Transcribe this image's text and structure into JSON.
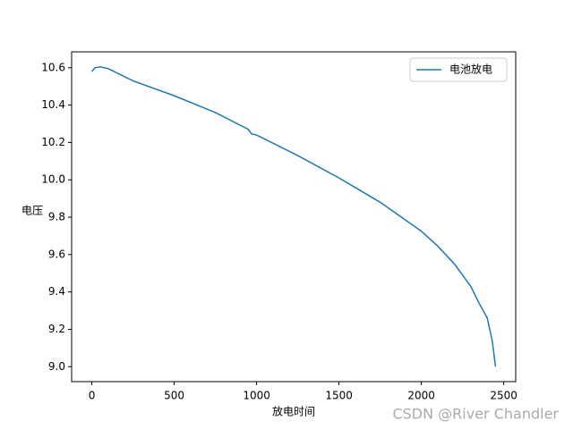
{
  "chart_data": {
    "type": "line",
    "x_label": "放电时间",
    "y_label": "电压",
    "x": [
      0,
      20,
      50,
      100,
      250,
      500,
      750,
      950,
      970,
      1000,
      1250,
      1500,
      1750,
      2000,
      2100,
      2200,
      2250,
      2300,
      2350,
      2400,
      2430,
      2450
    ],
    "series": [
      {
        "name": "电池放电",
        "color": "#1f77b4",
        "values": [
          10.58,
          10.6,
          10.605,
          10.595,
          10.53,
          10.45,
          10.36,
          10.27,
          10.245,
          10.24,
          10.13,
          10.01,
          9.88,
          9.725,
          9.645,
          9.55,
          9.49,
          9.43,
          9.34,
          9.26,
          9.14,
          9.0
        ]
      }
    ],
    "xlim": [
      -122.5,
      2572.5
    ],
    "xticks": [
      0,
      500,
      1000,
      1500,
      2000,
      2500
    ],
    "ylim": [
      8.92,
      10.685
    ],
    "yticks": [
      {
        "value": 9.0,
        "label": "9.0"
      },
      9.2,
      9.4,
      9.6,
      9.8,
      {
        "value": 10.0,
        "label": "10.0"
      },
      10.2,
      10.4,
      10.6
    ],
    "legend": "upper right",
    "watermark": "CSDN @River Chandler"
  }
}
